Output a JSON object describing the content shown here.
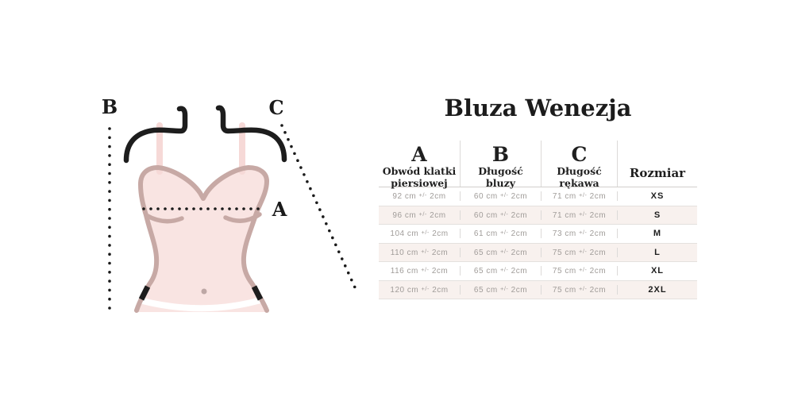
{
  "title": "Bluza Wenezja",
  "figure": {
    "label_a": "A",
    "label_b": "B",
    "label_c": "C"
  },
  "size_table": {
    "columns": [
      {
        "letter": "A",
        "line1": "Obwód klatki",
        "line2": "piersiowej"
      },
      {
        "letter": "B",
        "line1": "Długość",
        "line2": "bluzy"
      },
      {
        "letter": "C",
        "line1": "Długość",
        "line2": "rękawa"
      }
    ],
    "size_column_label": "Rozmiar",
    "rows": [
      {
        "a": "92 cm +/- 2cm",
        "b": "60 cm +/- 2cm",
        "c": "71 cm +/- 2cm",
        "size": "XS"
      },
      {
        "a": "96 cm +/- 2cm",
        "b": "60 cm +/- 2cm",
        "c": "71 cm +/- 2cm",
        "size": "S"
      },
      {
        "a": "104 cm +/- 2cm",
        "b": "61 cm +/- 2cm",
        "c": "73 cm +/- 2cm",
        "size": "M"
      },
      {
        "a": "110 cm +/- 2cm",
        "b": "65 cm +/- 2cm",
        "c": "75 cm +/- 2cm",
        "size": "L"
      },
      {
        "a": "116 cm +/- 2cm",
        "b": "65 cm +/- 2cm",
        "c": "75 cm +/- 2cm",
        "size": "XL"
      },
      {
        "a": "120 cm +/- 2cm",
        "b": "65 cm +/- 2cm",
        "c": "75 cm +/- 2cm",
        "size": "2XL"
      }
    ]
  },
  "colors": {
    "garment_fill": "#f9e4e2",
    "garment_outline": "#c7a9a5",
    "strap": "#f6d9d7",
    "navel": "#bda7a5",
    "ink": "#1d1d1d",
    "muted_text": "#a09c99",
    "alt_row": "#f8f1ee",
    "grid_line": "#dcdad8"
  }
}
